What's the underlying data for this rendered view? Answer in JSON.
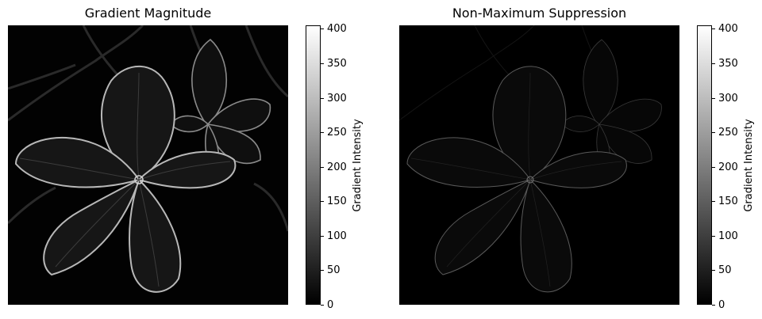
{
  "panels": [
    {
      "title": "Gradient Magnitude",
      "colorbar_label": "Gradient Intensity"
    },
    {
      "title": "Non-Maximum Suppression",
      "colorbar_label": "Gradient Intensity"
    }
  ],
  "colorbar": {
    "min": 0,
    "max": 405,
    "ticks": [
      "0",
      "50",
      "100",
      "150",
      "200",
      "250",
      "300",
      "350",
      "400"
    ],
    "tick_values": [
      0,
      50,
      100,
      150,
      200,
      250,
      300,
      350,
      400
    ],
    "colormap": "gray"
  },
  "image": {
    "subject": "edge map of a five-petaled flower with a second flower behind",
    "background_color": "#000000",
    "edge_color_strong": "#c8c8c8",
    "edge_color_weak": "#5a5a5a"
  }
}
